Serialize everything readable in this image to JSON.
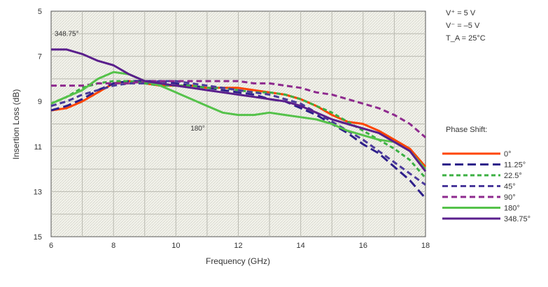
{
  "chart_data": {
    "type": "line",
    "title": "",
    "xlabel": "Frequency (GHz)",
    "ylabel": "Insertion Loss (dB)",
    "xlim": [
      6,
      18
    ],
    "ylim": [
      5,
      15
    ],
    "y_inverted": true,
    "x_ticks": [
      "6",
      "8",
      "10",
      "12",
      "14",
      "16",
      "18"
    ],
    "y_ticks": [
      "5",
      "7",
      "9",
      "11",
      "13",
      "15"
    ],
    "grid": true,
    "legend_title": "Phase Shift:",
    "legend_position": "right",
    "conditions": [
      "V⁺ = 5 V",
      "V⁻ = –5 V",
      "T_A = 25°C"
    ],
    "annotations": [
      {
        "text": "348.75°",
        "x": 6.5,
        "y": 6.1
      },
      {
        "text": "180°",
        "x": 10.7,
        "y": 10.3
      }
    ],
    "series": [
      {
        "name": "0°",
        "color": "#ff4500",
        "dash": "solid",
        "x": [
          6,
          6.5,
          7,
          7.5,
          8,
          8.5,
          9,
          9.5,
          10,
          10.5,
          11,
          11.5,
          12,
          12.5,
          13,
          13.5,
          14,
          14.5,
          15,
          15.5,
          16,
          16.5,
          17,
          17.5,
          18
        ],
        "y": [
          9.4,
          9.3,
          9.0,
          8.6,
          8.2,
          8.1,
          8.2,
          8.3,
          8.3,
          8.3,
          8.4,
          8.4,
          8.4,
          8.5,
          8.6,
          8.7,
          8.9,
          9.2,
          9.6,
          9.9,
          10.0,
          10.3,
          10.7,
          11.1,
          11.9
        ]
      },
      {
        "name": "11.25°",
        "color": "#2e1f8a",
        "dash": "long-dash",
        "x": [
          6,
          6.5,
          7,
          7.5,
          8,
          8.5,
          9,
          9.5,
          10,
          10.5,
          11,
          11.5,
          12,
          12.5,
          13,
          13.5,
          14,
          14.5,
          15,
          15.5,
          16,
          16.5,
          17,
          17.5,
          18
        ],
        "y": [
          9.4,
          9.2,
          8.9,
          8.5,
          8.2,
          8.1,
          8.1,
          8.1,
          8.2,
          8.3,
          8.4,
          8.5,
          8.6,
          8.7,
          8.9,
          9.0,
          9.3,
          9.6,
          10.0,
          10.4,
          10.9,
          11.3,
          11.9,
          12.5,
          13.3
        ]
      },
      {
        "name": "22.5°",
        "color": "#3cb043",
        "dash": "short-dash",
        "x": [
          6,
          6.5,
          7,
          7.5,
          8,
          8.5,
          9,
          9.5,
          10,
          10.5,
          11,
          11.5,
          12,
          12.5,
          13,
          13.5,
          14,
          14.5,
          15,
          15.5,
          16,
          16.5,
          17,
          17.5,
          18
        ],
        "y": [
          9.1,
          8.8,
          8.4,
          8.2,
          8.1,
          8.1,
          8.2,
          8.3,
          8.3,
          8.3,
          8.4,
          8.4,
          8.5,
          8.6,
          8.6,
          8.7,
          8.9,
          9.2,
          9.5,
          9.9,
          10.3,
          10.7,
          11.1,
          11.6,
          12.4
        ]
      },
      {
        "name": "45°",
        "color": "#4b3a9b",
        "dash": "dash",
        "x": [
          6,
          6.5,
          7,
          7.5,
          8,
          8.5,
          9,
          9.5,
          10,
          10.5,
          11,
          11.5,
          12,
          12.5,
          13,
          13.5,
          14,
          14.5,
          15,
          15.5,
          16,
          16.5,
          17,
          17.5,
          18
        ],
        "y": [
          9.2,
          9.0,
          8.7,
          8.5,
          8.3,
          8.2,
          8.2,
          8.1,
          8.1,
          8.2,
          8.3,
          8.4,
          8.5,
          8.6,
          8.7,
          8.9,
          9.1,
          9.5,
          9.9,
          10.3,
          10.7,
          11.2,
          11.7,
          12.2,
          12.7
        ]
      },
      {
        "name": "90°",
        "color": "#8e2a8e",
        "dash": "dash",
        "x": [
          6,
          6.5,
          7,
          7.5,
          8,
          8.5,
          9,
          9.5,
          10,
          10.5,
          11,
          11.5,
          12,
          12.5,
          13,
          13.5,
          14,
          14.5,
          15,
          15.5,
          16,
          16.5,
          17,
          17.5,
          18
        ],
        "y": [
          8.3,
          8.3,
          8.3,
          8.2,
          8.2,
          8.2,
          8.1,
          8.1,
          8.1,
          8.1,
          8.1,
          8.1,
          8.1,
          8.2,
          8.2,
          8.3,
          8.4,
          8.6,
          8.7,
          8.9,
          9.1,
          9.3,
          9.6,
          10.0,
          10.6
        ]
      },
      {
        "name": "180°",
        "color": "#55c24a",
        "dash": "solid",
        "x": [
          6,
          6.5,
          7,
          7.5,
          8,
          8.5,
          9,
          9.5,
          10,
          10.5,
          11,
          11.5,
          12,
          12.5,
          13,
          13.5,
          14,
          14.5,
          15,
          15.5,
          16,
          16.5,
          17,
          17.5,
          18
        ],
        "y": [
          9.1,
          8.8,
          8.5,
          8.0,
          7.7,
          7.8,
          8.1,
          8.3,
          8.6,
          8.9,
          9.2,
          9.5,
          9.6,
          9.6,
          9.5,
          9.6,
          9.7,
          9.8,
          10.0,
          10.3,
          10.5,
          10.7,
          10.8,
          11.2,
          12.0
        ]
      },
      {
        "name": "348.75°",
        "color": "#5a1f8c",
        "dash": "solid",
        "x": [
          6,
          6.5,
          7,
          7.5,
          8,
          8.5,
          9,
          9.5,
          10,
          10.5,
          11,
          11.5,
          12,
          12.5,
          13,
          13.5,
          14,
          14.5,
          15,
          15.5,
          16,
          16.5,
          17,
          17.5,
          18
        ],
        "y": [
          6.7,
          6.7,
          6.9,
          7.2,
          7.4,
          7.8,
          8.1,
          8.2,
          8.3,
          8.4,
          8.5,
          8.6,
          8.7,
          8.8,
          8.9,
          9.0,
          9.2,
          9.5,
          9.8,
          10.0,
          10.2,
          10.4,
          10.8,
          11.2,
          12.1
        ]
      }
    ]
  }
}
